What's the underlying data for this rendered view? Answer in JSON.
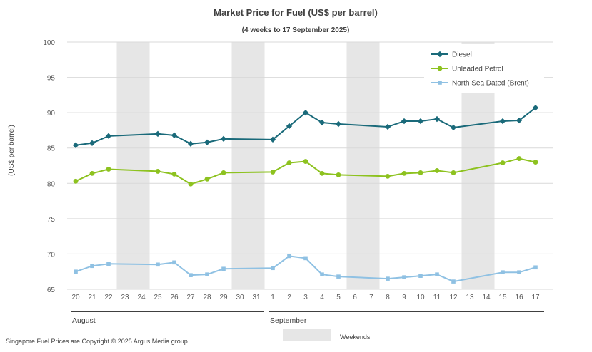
{
  "chart_data": {
    "type": "line",
    "title": "Market Price for Fuel (US$ per barrel)",
    "subtitle": "(4 weeks to 17 September 2025)",
    "ylabel": "(US$ per barrel)",
    "xlabel": "",
    "ylim": [
      65,
      100
    ],
    "yticks": [
      65,
      70,
      75,
      80,
      85,
      90,
      95,
      100
    ],
    "grid": true,
    "legend_position": "top-right",
    "categories": [
      "20",
      "21",
      "22",
      "23",
      "24",
      "25",
      "26",
      "27",
      "28",
      "29",
      "30",
      "31",
      "1",
      "2",
      "3",
      "4",
      "5",
      "6",
      "7",
      "8",
      "9",
      "10",
      "11",
      "12",
      "13",
      "14",
      "15",
      "16",
      "17"
    ],
    "month_labels": [
      {
        "label": "August",
        "start": 0,
        "end": 11
      },
      {
        "label": "September",
        "start": 12,
        "end": 28
      }
    ],
    "weekend_shading": {
      "label": "Weekends",
      "color": "#e6e6e6",
      "ranges": [
        [
          3,
          4
        ],
        [
          10,
          11
        ],
        [
          17,
          18
        ],
        [
          24,
          25
        ]
      ]
    },
    "series": [
      {
        "name": "Diesel",
        "color": "#1a6a7a",
        "marker": "diamond",
        "values": [
          85.4,
          85.7,
          86.7,
          null,
          null,
          87.0,
          86.8,
          85.6,
          85.8,
          86.3,
          null,
          null,
          86.2,
          88.1,
          90.0,
          88.6,
          88.4,
          null,
          null,
          88.0,
          88.8,
          88.8,
          89.1,
          87.9,
          null,
          null,
          88.8,
          88.9,
          90.7
        ]
      },
      {
        "name": "Unleaded Petrol",
        "color": "#8dc21f",
        "marker": "circle",
        "values": [
          80.3,
          81.4,
          82.0,
          null,
          null,
          81.7,
          81.3,
          79.9,
          80.6,
          81.5,
          null,
          null,
          81.6,
          82.9,
          83.1,
          81.4,
          81.2,
          null,
          null,
          81.0,
          81.4,
          81.5,
          81.8,
          81.5,
          null,
          null,
          82.9,
          83.5,
          83.0
        ]
      },
      {
        "name": "North Sea Dated (Brent)",
        "color": "#8fc1e3",
        "marker": "square",
        "values": [
          67.5,
          68.3,
          68.6,
          null,
          null,
          68.5,
          68.8,
          67.0,
          67.1,
          67.9,
          null,
          null,
          68.0,
          69.7,
          69.4,
          67.1,
          66.8,
          null,
          null,
          66.5,
          66.7,
          66.9,
          67.1,
          66.1,
          null,
          null,
          67.4,
          67.4,
          68.1
        ]
      }
    ],
    "footer": "Singapore Fuel Prices are Copyright © 2025 Argus Media group."
  }
}
